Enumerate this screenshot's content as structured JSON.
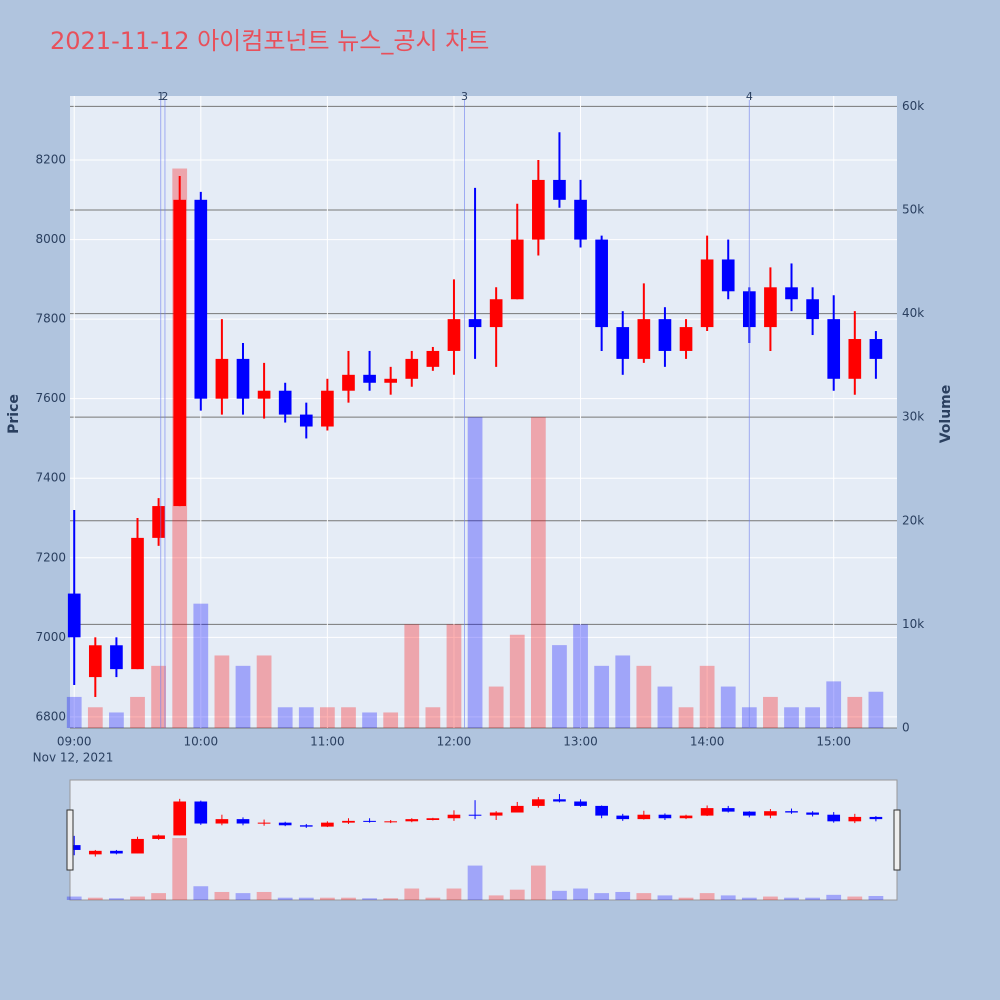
{
  "chart_data": {
    "type": "candlestick",
    "title": "2021-11-12 아이컴포넌트 뉴스_공시 차트",
    "y_label": "Price",
    "y2_label": "Volume",
    "x_date_label": "Nov 12, 2021",
    "increasing_color": "#ff0000",
    "decreasing_color": "#0000ff",
    "x": [
      "09:00",
      "09:10",
      "09:20",
      "09:30",
      "09:40",
      "09:50",
      "10:00",
      "10:10",
      "10:20",
      "10:30",
      "10:40",
      "10:50",
      "11:00",
      "11:10",
      "11:20",
      "11:30",
      "11:40",
      "11:50",
      "12:00",
      "12:10",
      "12:20",
      "12:30",
      "12:40",
      "12:50",
      "13:00",
      "13:10",
      "13:20",
      "13:30",
      "13:40",
      "13:50",
      "14:00",
      "14:10",
      "14:20",
      "14:30",
      "14:40",
      "14:50",
      "15:00",
      "15:10",
      "15:20"
    ],
    "open": [
      7110,
      6900,
      6980,
      6920,
      7250,
      7330,
      8100,
      7600,
      7700,
      7600,
      7620,
      7560,
      7530,
      7620,
      7660,
      7640,
      7650,
      7680,
      7720,
      7800,
      7780,
      7850,
      8000,
      8150,
      8100,
      8000,
      7780,
      7700,
      7800,
      7720,
      7780,
      7950,
      7870,
      7780,
      7880,
      7850,
      7800,
      7650,
      7750
    ],
    "high": [
      7320,
      7000,
      7000,
      7300,
      7350,
      8160,
      8120,
      7800,
      7740,
      7690,
      7640,
      7590,
      7650,
      7720,
      7720,
      7680,
      7720,
      7730,
      7900,
      8130,
      7880,
      8090,
      8200,
      8270,
      8150,
      8010,
      7820,
      7890,
      7830,
      7800,
      8010,
      8000,
      7880,
      7930,
      7940,
      7880,
      7860,
      7820,
      7770
    ],
    "low": [
      6880,
      6850,
      6900,
      6920,
      7230,
      7330,
      7570,
      7560,
      7560,
      7550,
      7540,
      7500,
      7520,
      7590,
      7620,
      7610,
      7630,
      7670,
      7660,
      7700,
      7680,
      7850,
      7960,
      8080,
      7980,
      7720,
      7660,
      7690,
      7680,
      7700,
      7770,
      7850,
      7740,
      7720,
      7820,
      7760,
      7620,
      7610,
      7650
    ],
    "close": [
      7000,
      6980,
      6920,
      7250,
      7330,
      8100,
      7600,
      7700,
      7600,
      7620,
      7560,
      7530,
      7620,
      7660,
      7640,
      7650,
      7700,
      7720,
      7800,
      7780,
      7850,
      8000,
      8150,
      8100,
      8000,
      7780,
      7700,
      7800,
      7720,
      7780,
      7950,
      7870,
      7780,
      7880,
      7850,
      7800,
      7650,
      7750,
      7700
    ],
    "volume": [
      3000,
      2000,
      1500,
      3000,
      6000,
      54000,
      12000,
      7000,
      6000,
      7000,
      2000,
      2000,
      2000,
      2000,
      1500,
      1500,
      10000,
      2000,
      10000,
      30000,
      4000,
      9000,
      30000,
      8000,
      10000,
      6000,
      7000,
      6000,
      4000,
      2000,
      6000,
      4000,
      2000,
      3000,
      2000,
      2000,
      4500,
      3000,
      3500
    ],
    "events": [
      {
        "x": "09:41",
        "label": "1"
      },
      {
        "x": "09:43",
        "label": "2"
      },
      {
        "x": "12:05",
        "label": "3"
      },
      {
        "x": "14:20",
        "label": "4"
      }
    ],
    "xlim": [
      "08:58",
      "15:30"
    ],
    "xticks": [
      "09:00",
      "10:00",
      "11:00",
      "12:00",
      "13:00",
      "14:00",
      "15:00"
    ],
    "ylim": [
      6772,
      8361
    ],
    "yticks": [
      6800,
      7000,
      7200,
      7400,
      7600,
      7800,
      8000,
      8200
    ],
    "y2lim": [
      0,
      61000
    ],
    "y2ticks": [
      0,
      {
        "value": 10000,
        "label": "10k"
      },
      {
        "value": 20000,
        "label": "20k"
      },
      {
        "value": 30000,
        "label": "30k"
      },
      {
        "value": 40000,
        "label": "40k"
      },
      {
        "value": 50000,
        "label": "50k"
      },
      {
        "value": 60000,
        "label": "60k"
      }
    ],
    "grid": true
  }
}
